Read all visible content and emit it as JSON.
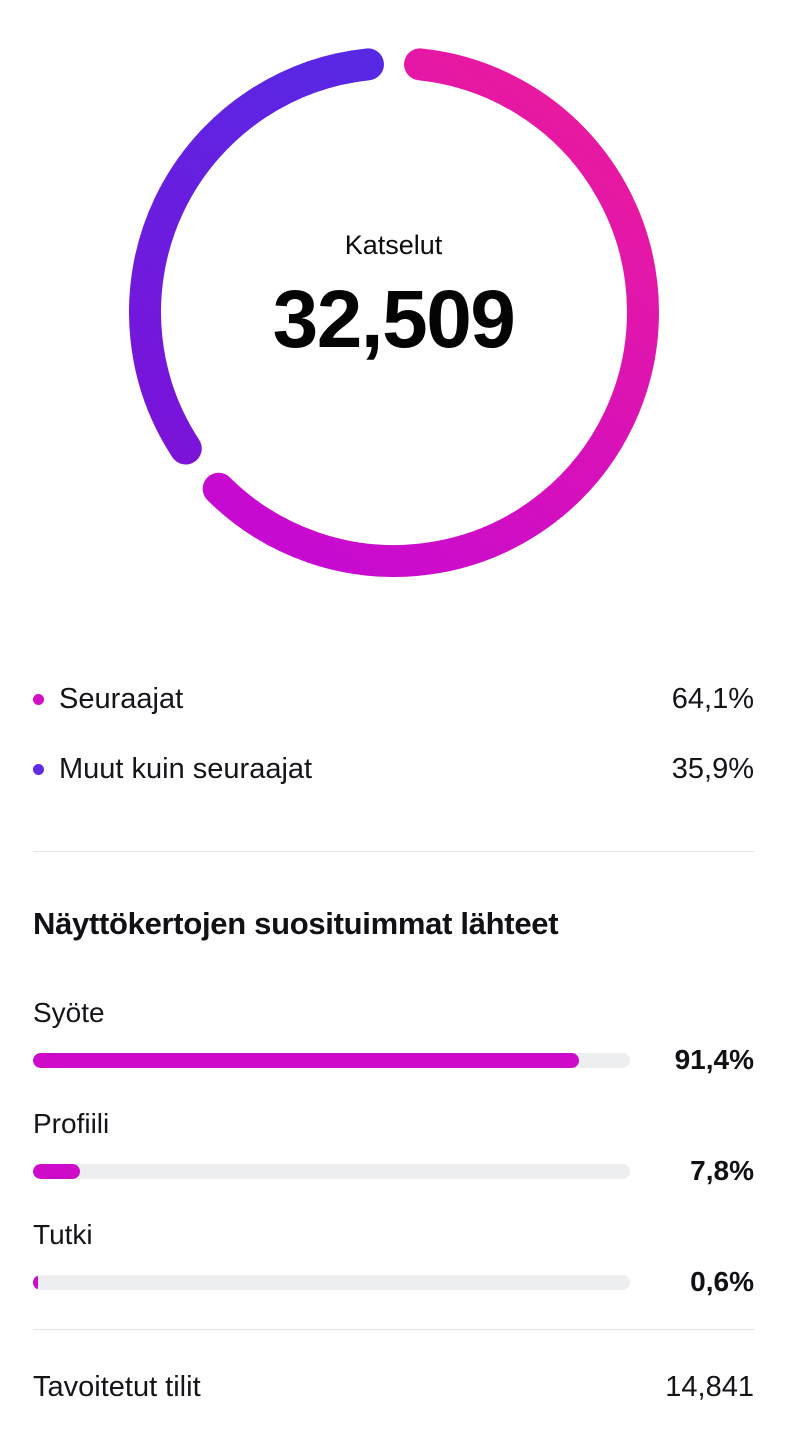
{
  "colors": {
    "bar_track": "#eceef0",
    "divider": "#e4e4e6",
    "accent_pink": "#ce0bc9",
    "accent_purple": "#5e2de3"
  },
  "donut": {
    "center_label": "Katselut",
    "center_value": "32,509"
  },
  "donut_gradients": [
    {
      "start": "#ea1a9d",
      "end": "#c70ad1"
    },
    {
      "start": "#5629e5",
      "end": "#7d12d8"
    }
  ],
  "legend": [
    {
      "label": "Seuraajat",
      "value": "64,1%",
      "dot_color": "#d10fc5"
    },
    {
      "label": "Muut kuin seuraajat",
      "value": "35,9%",
      "dot_color": "#5e2de3"
    }
  ],
  "sources": {
    "title": "Näyttökertojen suosituimmat lähteet",
    "bar_color": "#ce0bc9",
    "track_color": "#eceef0",
    "items": [
      {
        "label": "Syöte",
        "value": "91,4%",
        "pct": 91.4
      },
      {
        "label": "Profiili",
        "value": "7,8%",
        "pct": 7.8
      },
      {
        "label": "Tutki",
        "value": "0,6%",
        "pct": 0.6
      }
    ]
  },
  "footer": {
    "label": "Tavoitetut tilit",
    "value": "14,841"
  },
  "chart_data": [
    {
      "type": "pie",
      "subtype": "donut",
      "title": "Katselut",
      "center_label": "Katselut",
      "center_value": "32,509",
      "center_value_number": 32509,
      "start_angle_deg": -90,
      "direction": "clockwise",
      "legend_position": "below",
      "slices": [
        {
          "label": "Seuraajat",
          "value_pct": 64.1,
          "display": "64,1%",
          "color": "#ce0bc9"
        },
        {
          "label": "Muut kuin seuraajat",
          "value_pct": 35.9,
          "display": "35,9%",
          "color": "#5e2de3"
        }
      ]
    },
    {
      "type": "bar",
      "orientation": "horizontal",
      "title": "Näyttökertojen suosituimmat lähteet",
      "categories": [
        "Syöte",
        "Profiili",
        "Tutki"
      ],
      "values": [
        91.4,
        7.8,
        0.6
      ],
      "value_labels": [
        "91,4%",
        "7,8%",
        "0,6%"
      ],
      "xlim": [
        0,
        100
      ],
      "bar_color": "#ce0bc9",
      "track_color": "#eceef0",
      "grid": false
    },
    {
      "type": "table",
      "title": "Tavoitetut tilit",
      "rows": [
        {
          "label": "Tavoitetut tilit",
          "value": 14841,
          "display": "14,841"
        }
      ]
    }
  ]
}
